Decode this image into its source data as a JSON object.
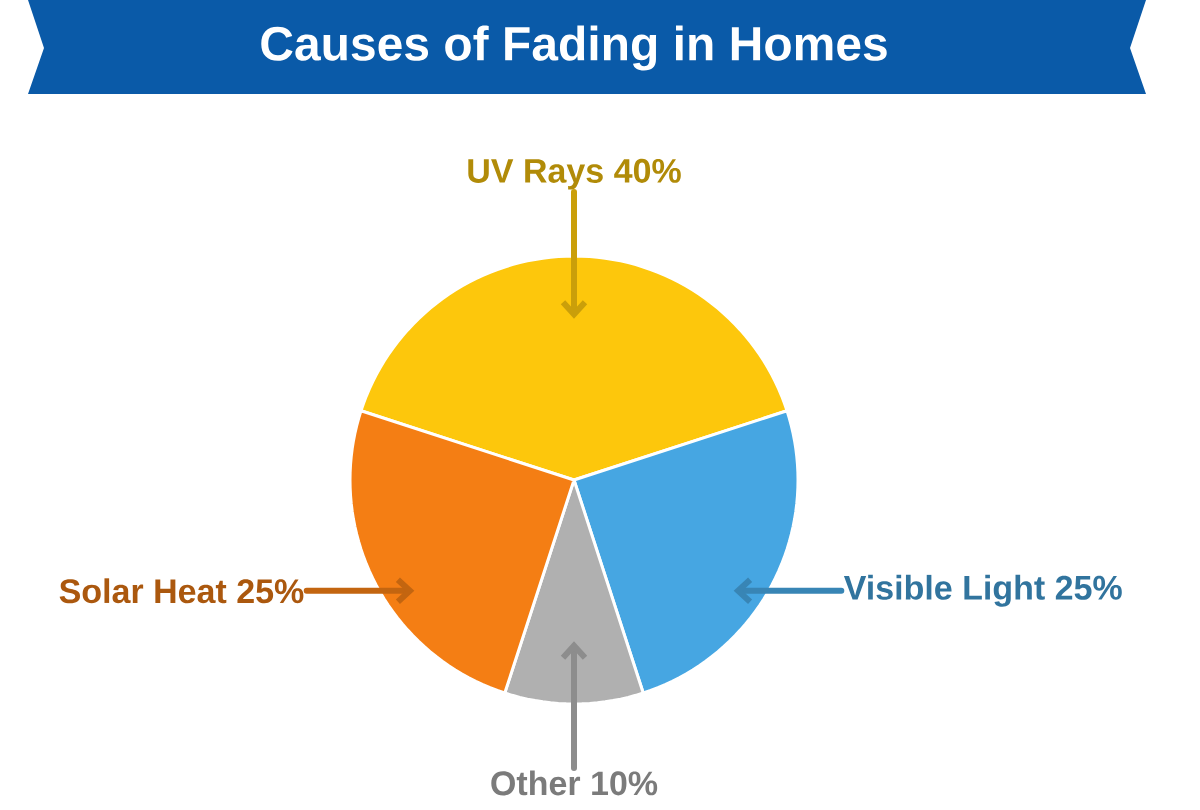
{
  "chart_data": {
    "type": "pie",
    "title": "Causes of Fading in Homes",
    "categories": [
      "UV Rays",
      "Visible Light",
      "Other",
      "Solar Heat"
    ],
    "values": [
      40,
      25,
      10,
      25
    ],
    "value_labels": [
      "40%",
      "25%",
      "10%",
      "25%"
    ],
    "colors": [
      "#fdc70c",
      "#46a6e2",
      "#b0b0b0",
      "#f47e14"
    ]
  }
}
